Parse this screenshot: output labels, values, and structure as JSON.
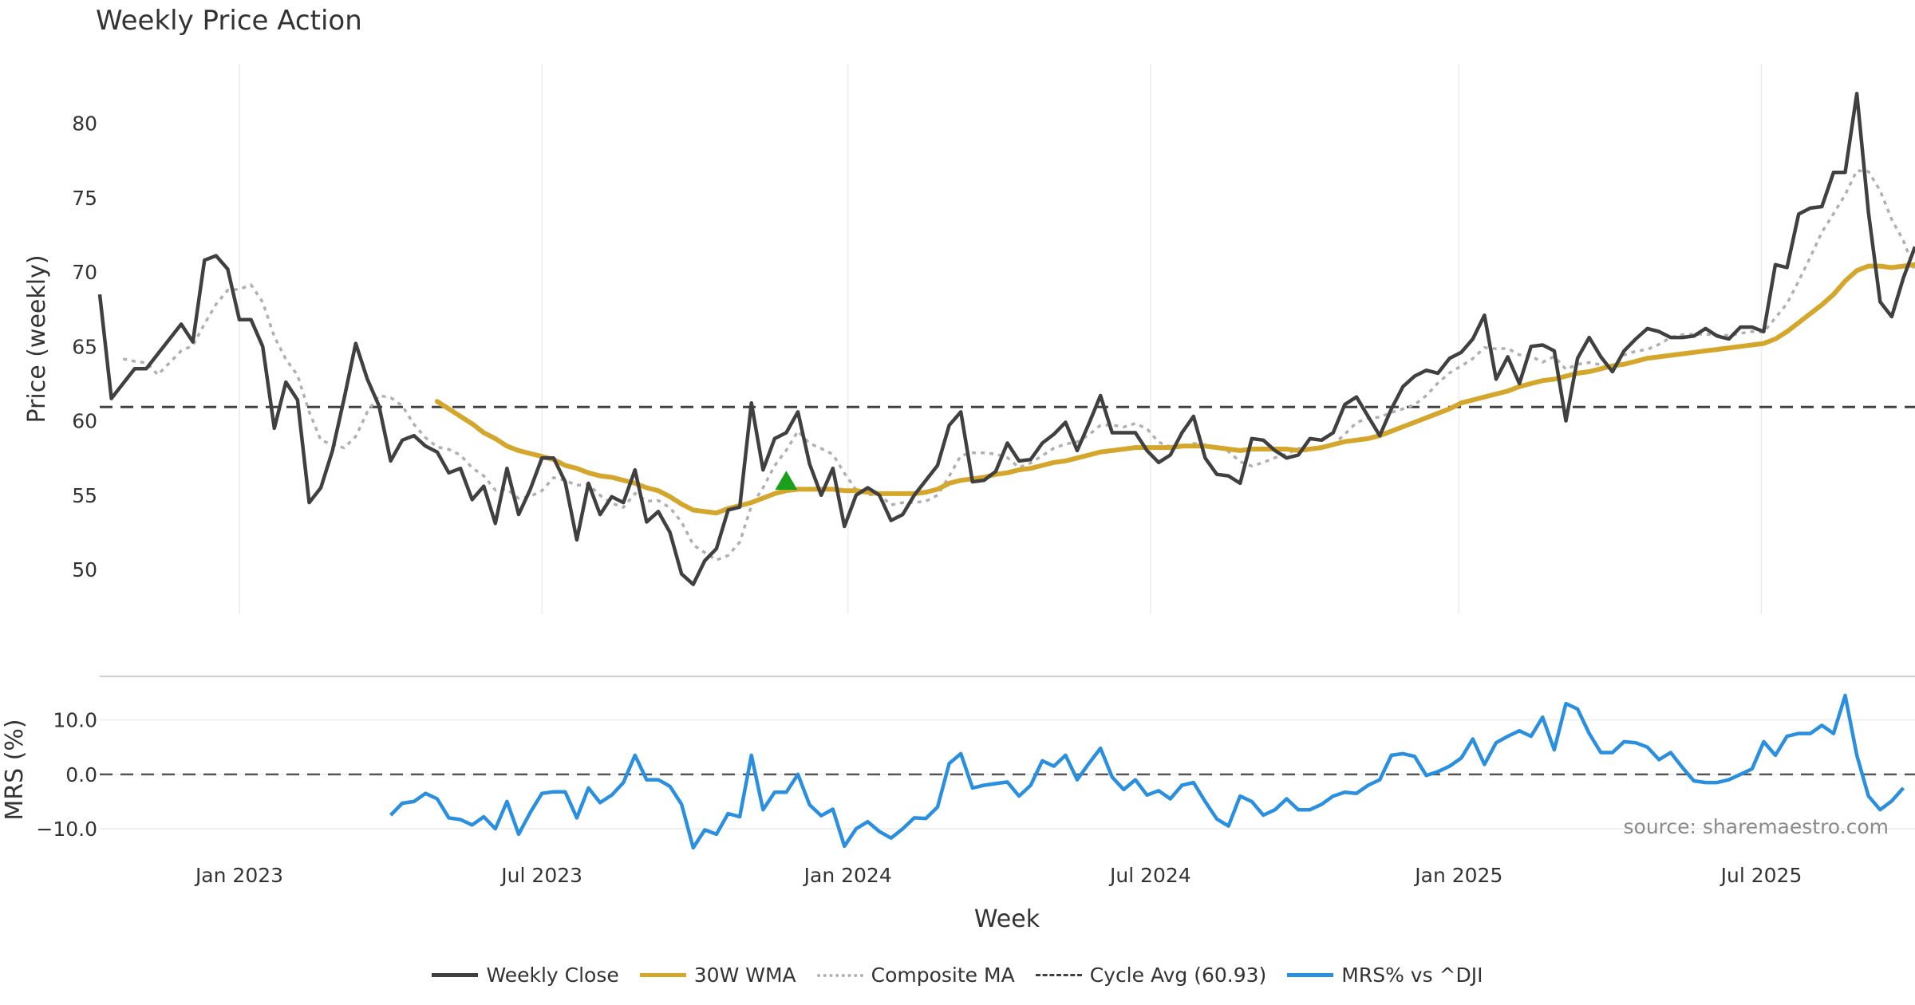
{
  "chart_data": {
    "type": "line",
    "title": "Weekly Price Action",
    "xlabel": "Week",
    "source": "source: sharemaestro.com",
    "x_ticks": [
      "Jan 2023",
      "Jul 2023",
      "Jan 2024",
      "Jul 2024",
      "Jan 2025",
      "Jul 2025"
    ],
    "price_panel": {
      "ylabel": "Price (weekly)",
      "ylim": [
        47,
        84
      ],
      "y_ticks": [
        50,
        55,
        60,
        65,
        70,
        75,
        80
      ],
      "cycle_avg": 60.93,
      "buy_signal": {
        "week_index": 59,
        "value": 56.0
      },
      "weekly_close": [
        68.5,
        61.5,
        62.5,
        63.5,
        63.5,
        64.5,
        65.5,
        66.5,
        65.3,
        70.8,
        71.1,
        70.2,
        66.8,
        66.8,
        65.0,
        59.5,
        62.6,
        61.4,
        54.5,
        55.5,
        58.0,
        61.5,
        65.2,
        62.8,
        61.0,
        57.3,
        58.7,
        59.0,
        58.3,
        57.9,
        56.5,
        56.8,
        54.7,
        55.6,
        53.1,
        56.8,
        53.7,
        55.4,
        57.5,
        57.5,
        55.9,
        52.0,
        55.8,
        53.7,
        54.9,
        54.5,
        56.7,
        53.2,
        53.9,
        52.5,
        49.7,
        49.0,
        50.6,
        51.4,
        54.0,
        54.2,
        61.2,
        56.7,
        58.8,
        59.2,
        60.6,
        57.1,
        55.0,
        56.8,
        52.9,
        55.0,
        55.5,
        55.0,
        53.3,
        53.7,
        55.0,
        56.0,
        57.0,
        59.7,
        60.6,
        55.9,
        56.0,
        56.6,
        58.5,
        57.3,
        57.4,
        58.5,
        59.1,
        59.9,
        58.0,
        59.8,
        61.7,
        59.2,
        59.2,
        59.2,
        58.0,
        57.2,
        57.7,
        59.2,
        60.3,
        57.5,
        56.4,
        56.3,
        55.8,
        58.8,
        58.7,
        58.0,
        57.5,
        57.7,
        58.8,
        58.7,
        59.2,
        61.1,
        61.6,
        60.3,
        59.0,
        60.8,
        62.3,
        63.0,
        63.4,
        63.2,
        64.2,
        64.6,
        65.5,
        67.1,
        62.8,
        64.3,
        62.5,
        65.0,
        65.1,
        64.7,
        60.0,
        64.2,
        65.6,
        64.3,
        63.3,
        64.7,
        65.5,
        66.2,
        66.0,
        65.6,
        65.6,
        65.7,
        66.2,
        65.7,
        65.5,
        66.3,
        66.3,
        66.0,
        70.5,
        70.3,
        73.9,
        74.3,
        74.4,
        76.7,
        76.7,
        82.0,
        74.0,
        68.0,
        67.0,
        69.6,
        71.7
      ],
      "wma_30w": [
        null,
        null,
        null,
        null,
        null,
        null,
        null,
        null,
        null,
        null,
        null,
        null,
        null,
        null,
        null,
        null,
        null,
        null,
        null,
        null,
        null,
        null,
        null,
        null,
        null,
        null,
        null,
        null,
        null,
        61.3,
        60.8,
        60.3,
        59.8,
        59.2,
        58.8,
        58.3,
        58.0,
        57.8,
        57.6,
        57.4,
        57.0,
        56.8,
        56.5,
        56.3,
        56.2,
        56.0,
        55.8,
        55.5,
        55.3,
        54.9,
        54.4,
        54.0,
        53.9,
        53.8,
        54.1,
        54.3,
        54.5,
        54.8,
        55.1,
        55.3,
        55.4,
        55.4,
        55.4,
        55.4,
        55.3,
        55.3,
        55.2,
        55.1,
        55.1,
        55.1,
        55.1,
        55.2,
        55.4,
        55.8,
        56.0,
        56.1,
        56.2,
        56.4,
        56.5,
        56.7,
        56.8,
        57.0,
        57.2,
        57.3,
        57.5,
        57.7,
        57.9,
        58.0,
        58.1,
        58.2,
        58.2,
        58.2,
        58.2,
        58.3,
        58.3,
        58.3,
        58.2,
        58.1,
        58.0,
        58.1,
        58.1,
        58.1,
        58.1,
        58.0,
        58.1,
        58.2,
        58.4,
        58.6,
        58.7,
        58.8,
        59.0,
        59.3,
        59.6,
        59.9,
        60.2,
        60.5,
        60.8,
        61.2,
        61.4,
        61.6,
        61.8,
        62.0,
        62.3,
        62.5,
        62.7,
        62.8,
        63.0,
        63.2,
        63.3,
        63.5,
        63.7,
        63.8,
        64.0,
        64.2,
        64.3,
        64.4,
        64.5,
        64.6,
        64.7,
        64.8,
        64.9,
        65.0,
        65.1,
        65.2,
        65.5,
        66.0,
        66.6,
        67.2,
        67.8,
        68.5,
        69.4,
        70.1,
        70.4,
        70.4,
        70.3,
        70.4,
        70.5
      ]
    },
    "mrs_panel": {
      "ylabel": "MRS (%)",
      "ylim": [
        -16,
        18
      ],
      "y_ticks": [
        10.0,
        0.0,
        -10.0
      ],
      "y_tick_labels": [
        "10.0",
        "0.0",
        "−10.0"
      ],
      "mrs_vs_dji": [
        null,
        null,
        null,
        null,
        null,
        null,
        null,
        null,
        null,
        null,
        null,
        null,
        null,
        null,
        null,
        null,
        null,
        null,
        null,
        null,
        null,
        null,
        null,
        null,
        null,
        -7.5,
        -5.3,
        -5.0,
        -3.5,
        -4.5,
        -8.0,
        -8.3,
        -9.3,
        -7.8,
        -10.0,
        -5.0,
        -11.0,
        -7.0,
        -3.5,
        -3.2,
        -3.2,
        -8.0,
        -2.5,
        -5.2,
        -3.8,
        -1.5,
        3.5,
        -1.0,
        -1.0,
        -2.2,
        -5.5,
        -13.5,
        -10.2,
        -11.0,
        -7.2,
        -7.8,
        3.5,
        -6.5,
        -3.3,
        -3.3,
        0.0,
        -5.6,
        -7.6,
        -6.4,
        -13.2,
        -10.0,
        -8.7,
        -10.5,
        -11.7,
        -10.0,
        -8.0,
        -8.1,
        -6.0,
        2.0,
        3.8,
        -2.5,
        -2.0,
        -1.7,
        -1.4,
        -4.0,
        -2.0,
        2.5,
        1.5,
        3.5,
        -1.0,
        2.0,
        4.8,
        -0.5,
        -2.8,
        -1.0,
        -3.8,
        -3.0,
        -4.5,
        -2.0,
        -1.5,
        -5.0,
        -8.2,
        -9.5,
        -4.0,
        -5.0,
        -7.5,
        -6.5,
        -4.5,
        -6.5,
        -6.5,
        -5.5,
        -4.0,
        -3.3,
        -3.5,
        -2.0,
        -1.0,
        3.5,
        3.8,
        3.3,
        -0.2,
        0.5,
        1.5,
        3.0,
        6.5,
        1.8,
        5.8,
        7.0,
        8.0,
        7.0,
        10.5,
        4.5,
        13.0,
        12.0,
        7.5,
        4.0,
        4.0,
        6.0,
        5.8,
        5.0,
        2.7,
        4.0,
        1.3,
        -1.2,
        -1.5,
        -1.5,
        -1.0,
        0.0,
        1.0,
        6.0,
        3.5,
        7.0,
        7.5,
        7.5,
        9.0,
        7.5,
        14.5,
        3.5,
        -4.0,
        -6.5,
        -4.9,
        -2.5
      ]
    },
    "legend": [
      {
        "label": "Weekly Close",
        "color": "#404040",
        "style": "solid"
      },
      {
        "label": "30W WMA",
        "color": "#d4a72c",
        "style": "solid"
      },
      {
        "label": "Composite MA",
        "color": "#b0b0b0",
        "style": "dotted"
      },
      {
        "label": "Cycle Avg (60.93)",
        "color": "#404040",
        "style": "dashed"
      },
      {
        "label": "MRS% vs ^DJI",
        "color": "#2b8fe0",
        "style": "solid"
      }
    ],
    "colors": {
      "close": "#404040",
      "wma": "#d4a72c",
      "composite": "#b0b0b0",
      "mrs": "#2b8fe0",
      "signal": "#1aa01a",
      "grid": "#ececec"
    }
  }
}
